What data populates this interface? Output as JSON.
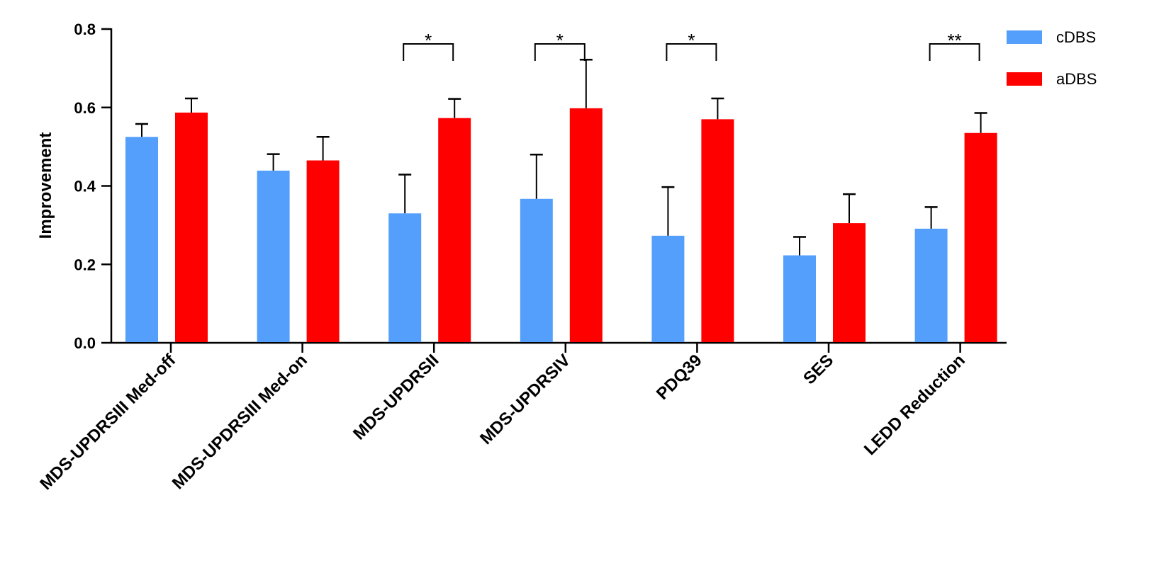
{
  "chart_data": {
    "type": "bar",
    "title": "",
    "xlabel": "",
    "ylabel": "Improvement",
    "ylim": [
      0,
      0.8
    ],
    "yticks": [
      "0.0",
      "0.2",
      "0.4",
      "0.6",
      "0.8"
    ],
    "grid": false,
    "legend_position": "top-right",
    "categories": [
      "MDS-UPDRSIII Med-off",
      "MDS-UPDRSIII Med-on",
      "MDS-UPDRSII",
      "MDS-UPDRSIV",
      "PDQ39",
      "SES",
      "LEDD Reduction"
    ],
    "series": [
      {
        "name": "cDBS",
        "color": "#559FFC",
        "values": [
          0.525,
          0.439,
          0.33,
          0.367,
          0.273,
          0.223,
          0.291
        ],
        "error_upper": [
          0.558,
          0.481,
          0.429,
          0.48,
          0.397,
          0.27,
          0.346
        ]
      },
      {
        "name": "aDBS",
        "color": "#FF0000",
        "values": [
          0.587,
          0.465,
          0.573,
          0.598,
          0.57,
          0.305,
          0.535
        ],
        "error_upper": [
          0.623,
          0.525,
          0.622,
          0.722,
          0.623,
          0.379,
          0.586
        ]
      }
    ],
    "significance": [
      {
        "category_index": 2,
        "label": "*"
      },
      {
        "category_index": 3,
        "label": "*"
      },
      {
        "category_index": 4,
        "label": "*"
      },
      {
        "category_index": 6,
        "label": "**"
      }
    ]
  }
}
